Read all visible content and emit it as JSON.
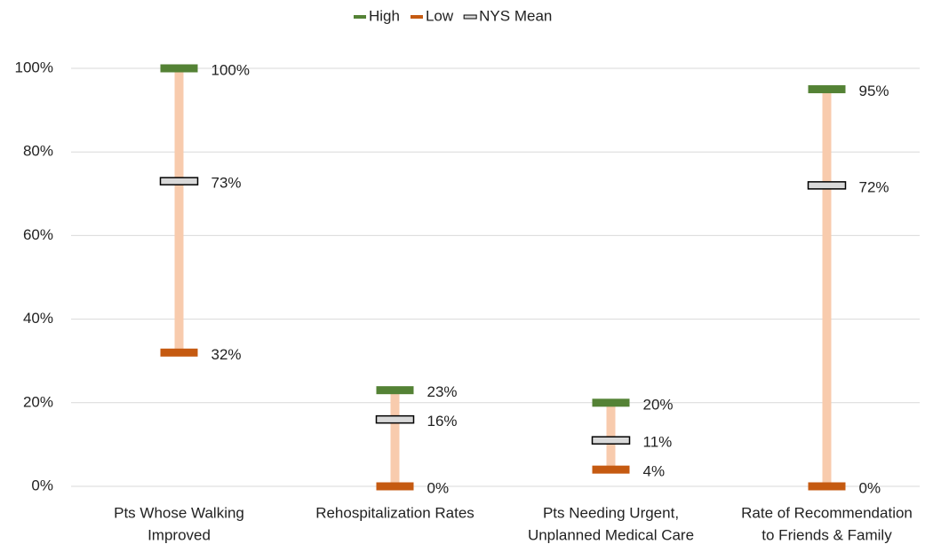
{
  "chart_data": {
    "type": "hilo",
    "categories": [
      [
        "Pts Whose Walking",
        "Improved"
      ],
      [
        "Rehospitalization Rates"
      ],
      [
        "Pts Needing Urgent,",
        "Unplanned Medical Care"
      ],
      [
        "Rate of Recommendation",
        "to Friends & Family"
      ]
    ],
    "series": [
      {
        "name": "High",
        "color": "#548235",
        "values": [
          100,
          23,
          20,
          95
        ],
        "value_labels": [
          "100%",
          "23%",
          "20%",
          "95%"
        ]
      },
      {
        "name": "Low",
        "color": "#c55a11",
        "values": [
          32,
          0,
          4,
          0
        ],
        "value_labels": [
          "32%",
          "0%",
          "4%",
          "0%"
        ]
      },
      {
        "name": "NYS Mean",
        "color": "#d9d9d9",
        "values": [
          73,
          16,
          11,
          72
        ],
        "value_labels": [
          "73%",
          "16%",
          "11%",
          "72%"
        ]
      }
    ],
    "range_color": "#f8cbad",
    "ylim": [
      0,
      100
    ],
    "yticks": [
      {
        "value": 0,
        "label": "0%"
      },
      {
        "value": 20,
        "label": "20%"
      },
      {
        "value": 40,
        "label": "40%"
      },
      {
        "value": 60,
        "label": "60%"
      },
      {
        "value": 80,
        "label": "80%"
      },
      {
        "value": 100,
        "label": "100%"
      }
    ],
    "grid": true,
    "legend": "top"
  }
}
